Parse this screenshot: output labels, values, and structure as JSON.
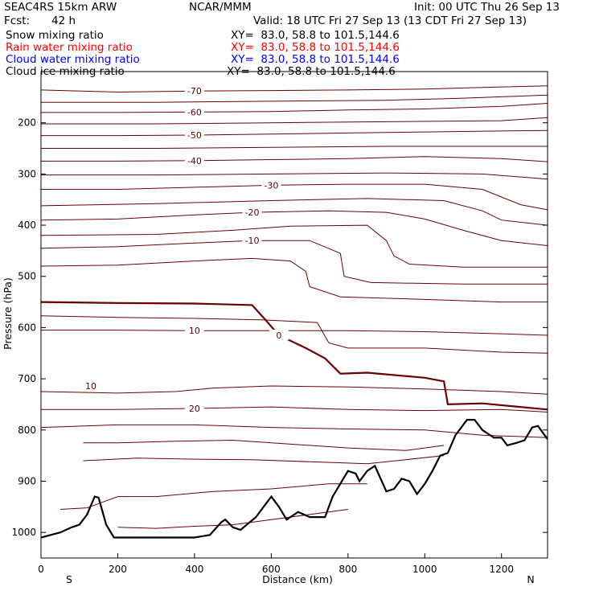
{
  "header": {
    "model": "SEAC4RS 15km ARW",
    "org": "NCAR/MMM",
    "init": "Init: 00 UTC Thu 26 Sep 13",
    "fcst_label": "Fcst:",
    "fcst_value": "42 h",
    "valid": "Valid: 18 UTC Fri 27 Sep 13 (13 CDT Fri 27 Sep 13)"
  },
  "legend": [
    {
      "name": "Snow mixing ratio",
      "xy": "XY=  83.0, 58.8 to 101.5,144.6",
      "color": "#000000"
    },
    {
      "name": "Rain water mixing ratio",
      "xy": "XY=  83.0, 58.8 to 101.5,144.6",
      "color": "#ff0000"
    },
    {
      "name": "Cloud water mixing ratio",
      "xy": "XY=  83.0, 58.8 to 101.5,144.6",
      "color": "#0000ff"
    },
    {
      "name": "Cloud ice mixing ratio",
      "xy": "XY=  83.0, 58.8 to 101.5,144.6",
      "color": "#000000"
    }
  ],
  "chart_data": {
    "type": "line",
    "xlabel": "Distance (km)",
    "ylabel": "Pressure (hPa)",
    "xlim": [
      0,
      1320
    ],
    "ylim": [
      1050,
      100
    ],
    "x_ticks": [
      0,
      200,
      400,
      600,
      800,
      1000,
      1200
    ],
    "y_ticks": [
      200,
      300,
      400,
      500,
      600,
      700,
      800,
      900,
      1000
    ],
    "end_labels": {
      "left": "S",
      "right": "N"
    },
    "contour_color": "#6b0000",
    "terrain_color": "#000000",
    "isotherms": [
      {
        "value": -70,
        "label": "-70",
        "points": [
          [
            0,
            136
          ],
          [
            200,
            140
          ],
          [
            400,
            138
          ],
          [
            600,
            137
          ],
          [
            800,
            136
          ],
          [
            1000,
            134
          ],
          [
            1200,
            130
          ],
          [
            1320,
            128
          ]
        ]
      },
      {
        "value": -65,
        "points": [
          [
            0,
            160
          ],
          [
            300,
            160
          ],
          [
            600,
            158
          ],
          [
            900,
            156
          ],
          [
            1100,
            152
          ],
          [
            1320,
            146
          ]
        ]
      },
      {
        "value": -60,
        "label": "-60",
        "points": [
          [
            0,
            180
          ],
          [
            200,
            180
          ],
          [
            400,
            179
          ],
          [
            600,
            178
          ],
          [
            800,
            175
          ],
          [
            1000,
            173
          ],
          [
            1200,
            168
          ],
          [
            1320,
            162
          ]
        ]
      },
      {
        "value": -55,
        "points": [
          [
            0,
            202
          ],
          [
            300,
            202
          ],
          [
            600,
            200
          ],
          [
            900,
            198
          ],
          [
            1200,
            196
          ],
          [
            1320,
            190
          ]
        ]
      },
      {
        "value": -50,
        "label": "-50",
        "points": [
          [
            0,
            225
          ],
          [
            200,
            225
          ],
          [
            400,
            224
          ],
          [
            600,
            222
          ],
          [
            800,
            220
          ],
          [
            1000,
            218
          ],
          [
            1200,
            216
          ],
          [
            1320,
            215
          ]
        ]
      },
      {
        "value": -45,
        "points": [
          [
            0,
            250
          ],
          [
            300,
            250
          ],
          [
            600,
            248
          ],
          [
            900,
            246
          ],
          [
            1200,
            246
          ],
          [
            1320,
            246
          ]
        ]
      },
      {
        "value": -40,
        "label": "-40",
        "points": [
          [
            0,
            275
          ],
          [
            200,
            275
          ],
          [
            400,
            274
          ],
          [
            600,
            272
          ],
          [
            800,
            270
          ],
          [
            1000,
            266
          ],
          [
            1200,
            270
          ],
          [
            1320,
            276
          ]
        ]
      },
      {
        "value": -35,
        "points": [
          [
            0,
            302
          ],
          [
            300,
            302
          ],
          [
            600,
            300
          ],
          [
            900,
            298
          ],
          [
            1150,
            300
          ],
          [
            1320,
            310
          ]
        ]
      },
      {
        "value": -30,
        "label": "-30",
        "points": [
          [
            0,
            330
          ],
          [
            200,
            330
          ],
          [
            400,
            326
          ],
          [
            600,
            322
          ],
          [
            800,
            320
          ],
          [
            1000,
            320
          ],
          [
            1150,
            330
          ],
          [
            1250,
            360
          ],
          [
            1320,
            370
          ]
        ]
      },
      {
        "value": -25,
        "points": [
          [
            0,
            362
          ],
          [
            300,
            358
          ],
          [
            600,
            352
          ],
          [
            850,
            348
          ],
          [
            1050,
            352
          ],
          [
            1150,
            372
          ],
          [
            1200,
            390
          ],
          [
            1320,
            400
          ]
        ]
      },
      {
        "value": -20,
        "label": "-20",
        "points": [
          [
            0,
            390
          ],
          [
            200,
            388
          ],
          [
            400,
            380
          ],
          [
            550,
            375
          ],
          [
            750,
            372
          ],
          [
            900,
            375
          ],
          [
            1000,
            388
          ],
          [
            1100,
            410
          ],
          [
            1200,
            430
          ],
          [
            1320,
            440
          ]
        ]
      },
      {
        "value": -15,
        "points": [
          [
            0,
            420
          ],
          [
            300,
            418
          ],
          [
            500,
            410
          ],
          [
            650,
            402
          ],
          [
            850,
            400
          ],
          [
            900,
            430
          ],
          [
            920,
            460
          ],
          [
            960,
            476
          ],
          [
            1100,
            482
          ],
          [
            1320,
            482
          ]
        ]
      },
      {
        "value": -10,
        "label": "-10",
        "points": [
          [
            0,
            445
          ],
          [
            200,
            442
          ],
          [
            400,
            435
          ],
          [
            550,
            430
          ],
          [
            700,
            430
          ],
          [
            780,
            455
          ],
          [
            790,
            500
          ],
          [
            860,
            512
          ],
          [
            1100,
            515
          ],
          [
            1320,
            515
          ]
        ]
      },
      {
        "value": -5,
        "points": [
          [
            0,
            480
          ],
          [
            200,
            478
          ],
          [
            400,
            470
          ],
          [
            550,
            465
          ],
          [
            650,
            470
          ],
          [
            690,
            490
          ],
          [
            700,
            520
          ],
          [
            780,
            540
          ],
          [
            1000,
            545
          ],
          [
            1200,
            550
          ],
          [
            1320,
            550
          ]
        ]
      },
      {
        "value": 0,
        "label": "0",
        "bold": true,
        "points": [
          [
            0,
            550
          ],
          [
            200,
            552
          ],
          [
            400,
            553
          ],
          [
            550,
            556
          ],
          [
            585,
            585
          ],
          [
            620,
            615
          ],
          [
            690,
            640
          ],
          [
            740,
            660
          ],
          [
            780,
            690
          ],
          [
            850,
            688
          ],
          [
            1000,
            698
          ],
          [
            1050,
            705
          ],
          [
            1060,
            750
          ],
          [
            1150,
            748
          ],
          [
            1320,
            760
          ]
        ]
      },
      {
        "value": 5,
        "points": [
          [
            0,
            577
          ],
          [
            200,
            580
          ],
          [
            400,
            582
          ],
          [
            580,
            585
          ],
          [
            720,
            590
          ],
          [
            750,
            630
          ],
          [
            800,
            640
          ],
          [
            1000,
            640
          ],
          [
            1200,
            648
          ],
          [
            1320,
            650
          ]
        ]
      },
      {
        "value": 10,
        "label": "10",
        "points": [
          [
            0,
            605
          ],
          [
            200,
            605
          ],
          [
            400,
            606
          ],
          [
            600,
            606
          ],
          [
            800,
            606
          ],
          [
            1000,
            608
          ],
          [
            1200,
            612
          ],
          [
            1320,
            615
          ]
        ]
      },
      {
        "value": 15,
        "points": [
          [
            0,
            725
          ],
          [
            200,
            728
          ],
          [
            350,
            725
          ],
          [
            450,
            718
          ],
          [
            600,
            714
          ],
          [
            800,
            716
          ],
          [
            1000,
            720
          ],
          [
            1200,
            725
          ],
          [
            1320,
            730
          ]
        ]
      },
      {
        "value": 20,
        "label": "20",
        "points": [
          [
            0,
            760
          ],
          [
            200,
            760
          ],
          [
            400,
            758
          ],
          [
            600,
            755
          ],
          [
            800,
            760
          ],
          [
            1000,
            762
          ],
          [
            1200,
            760
          ],
          [
            1320,
            765
          ]
        ]
      },
      {
        "value": 25,
        "points": [
          [
            0,
            795
          ],
          [
            200,
            790
          ],
          [
            400,
            790
          ],
          [
            600,
            795
          ],
          [
            800,
            798
          ],
          [
            1000,
            800
          ],
          [
            1150,
            810
          ],
          [
            1320,
            815
          ]
        ]
      },
      {
        "value": 30,
        "points": [
          [
            110,
            825
          ],
          [
            200,
            825
          ],
          [
            350,
            822
          ],
          [
            500,
            820
          ],
          [
            700,
            830
          ],
          [
            800,
            835
          ],
          [
            950,
            840
          ],
          [
            1050,
            830
          ]
        ]
      },
      {
        "value": 35,
        "points": [
          [
            110,
            860
          ],
          [
            250,
            855
          ],
          [
            400,
            857
          ],
          [
            550,
            858
          ],
          [
            700,
            862
          ],
          [
            850,
            866
          ],
          [
            950,
            858
          ],
          [
            1050,
            850
          ]
        ]
      },
      {
        "value": 40,
        "points": [
          [
            50,
            955
          ],
          [
            120,
            952
          ],
          [
            200,
            930
          ],
          [
            300,
            930
          ],
          [
            450,
            920
          ],
          [
            600,
            915
          ],
          [
            750,
            905
          ],
          [
            850,
            905
          ]
        ]
      },
      {
        "value": 45,
        "points": [
          [
            200,
            990
          ],
          [
            300,
            992
          ],
          [
            400,
            988
          ],
          [
            500,
            985
          ],
          [
            600,
            975
          ],
          [
            700,
            965
          ],
          [
            800,
            955
          ]
        ]
      }
    ],
    "warm_10_label": "10",
    "terrain": [
      [
        0,
        1010
      ],
      [
        50,
        1000
      ],
      [
        80,
        990
      ],
      [
        100,
        985
      ],
      [
        120,
        965
      ],
      [
        140,
        930
      ],
      [
        150,
        932
      ],
      [
        170,
        985
      ],
      [
        190,
        1010
      ],
      [
        300,
        1010
      ],
      [
        400,
        1010
      ],
      [
        440,
        1005
      ],
      [
        470,
        980
      ],
      [
        480,
        975
      ],
      [
        500,
        990
      ],
      [
        520,
        995
      ],
      [
        560,
        970
      ],
      [
        600,
        930
      ],
      [
        620,
        950
      ],
      [
        640,
        975
      ],
      [
        670,
        960
      ],
      [
        700,
        970
      ],
      [
        740,
        970
      ],
      [
        760,
        930
      ],
      [
        800,
        880
      ],
      [
        820,
        885
      ],
      [
        830,
        900
      ],
      [
        850,
        880
      ],
      [
        870,
        870
      ],
      [
        900,
        920
      ],
      [
        920,
        915
      ],
      [
        940,
        895
      ],
      [
        960,
        900
      ],
      [
        980,
        925
      ],
      [
        1000,
        905
      ],
      [
        1020,
        880
      ],
      [
        1040,
        850
      ],
      [
        1060,
        845
      ],
      [
        1080,
        810
      ],
      [
        1110,
        780
      ],
      [
        1130,
        780
      ],
      [
        1150,
        800
      ],
      [
        1180,
        815
      ],
      [
        1200,
        815
      ],
      [
        1215,
        830
      ],
      [
        1240,
        825
      ],
      [
        1260,
        820
      ],
      [
        1280,
        795
      ],
      [
        1295,
        792
      ],
      [
        1320,
        818
      ]
    ]
  }
}
